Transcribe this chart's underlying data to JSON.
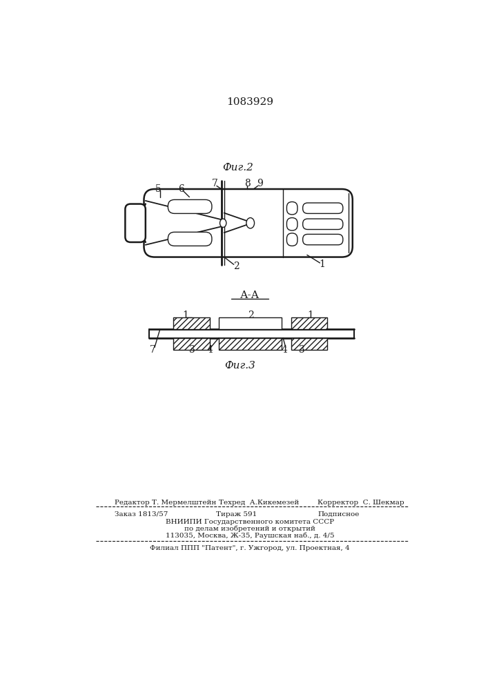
{
  "title": "1083929",
  "fig2_caption": "Фиг.2",
  "fig3_caption": "Фиг.3",
  "section_label": "А-А",
  "bg_color": "#ffffff",
  "line_color": "#1a1a1a",
  "footer_line1": "Редактор Т. Мермелштейн   Техред  А.Кикемезей       Корректор  С. Шекмар",
  "footer_line2a": "Заказ 1813/57",
  "footer_line2b": "Тираж 591",
  "footer_line2c": "Подписное",
  "footer_line3": "ВНИИПИ Государственного комитета СССР",
  "footer_line4": "по делам изобретений и открытий",
  "footer_line5": "113035, Москва, Ж-35, Раушская наб., д. 4/5",
  "footer_line6": "Филиал ППП \"Патент\", г. Ужгород, ул. Проектная, 4"
}
